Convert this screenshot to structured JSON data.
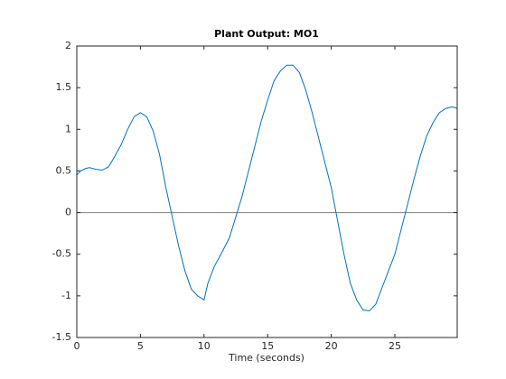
{
  "chart_data": {
    "type": "line",
    "title": "Plant Output:  MO1",
    "xlabel": "Time (seconds)",
    "x": [
      0,
      0.3,
      0.7,
      1,
      1.5,
      2,
      2.5,
      3,
      3.5,
      4,
      4.5,
      5,
      5.5,
      6,
      6.5,
      7,
      7.5,
      8,
      8.5,
      9,
      9.5,
      10,
      10.3,
      10.8,
      11.5,
      12,
      12.5,
      13,
      13.5,
      14,
      14.5,
      15,
      15.5,
      16,
      16.5,
      17,
      17.5,
      18,
      18.5,
      19,
      19.5,
      20,
      20.5,
      21,
      21.5,
      22,
      22.5,
      23,
      23.5,
      24,
      24.5,
      25,
      25.5,
      26,
      26.5,
      27,
      27.5,
      28,
      28.5,
      29,
      29.5,
      29.9
    ],
    "series": [
      {
        "color": "#0072bd",
        "values": [
          0.45,
          0.5,
          0.53,
          0.54,
          0.52,
          0.51,
          0.55,
          0.68,
          0.82,
          1.0,
          1.15,
          1.2,
          1.15,
          0.98,
          0.7,
          0.3,
          -0.05,
          -0.4,
          -0.7,
          -0.92,
          -1.0,
          -1.05,
          -0.85,
          -0.65,
          -0.45,
          -0.3,
          -0.05,
          0.2,
          0.5,
          0.8,
          1.1,
          1.35,
          1.58,
          1.7,
          1.77,
          1.77,
          1.68,
          1.47,
          1.2,
          0.9,
          0.6,
          0.3,
          -0.1,
          -0.5,
          -0.85,
          -1.05,
          -1.17,
          -1.18,
          -1.1,
          -0.9,
          -0.7,
          -0.5,
          -0.2,
          0.1,
          0.4,
          0.68,
          0.92,
          1.08,
          1.2,
          1.25,
          1.27,
          1.25
        ]
      }
    ],
    "hline": 0,
    "xlim": [
      0,
      29.9
    ],
    "xticks": [
      0,
      5,
      10,
      15,
      20,
      25
    ],
    "ylim": [
      -1.5,
      2
    ],
    "yticks": [
      -1.5,
      -1,
      -0.5,
      0,
      0.5,
      1,
      1.5,
      2
    ]
  }
}
